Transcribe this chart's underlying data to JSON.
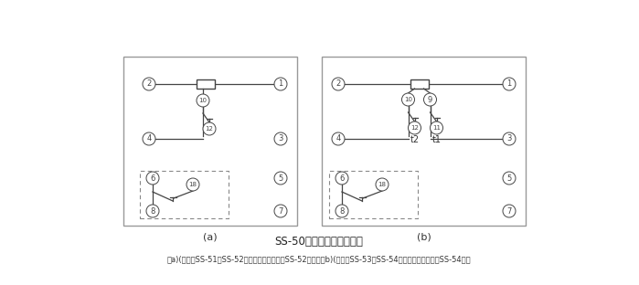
{
  "title": "SS-50系列背后端子接线图",
  "subtitle": "（a)(背视）SS-51、SS-52型，图中虚线部分仅SS-52型有；（b)(背视）SS-53、SS-54型，图中虚线部分仅SS-54型有",
  "label_a": "(a)",
  "label_b": "(b)",
  "bg_color": "#ffffff",
  "line_color": "#444444",
  "border_color": "#999999",
  "dashed_color": "#888888"
}
